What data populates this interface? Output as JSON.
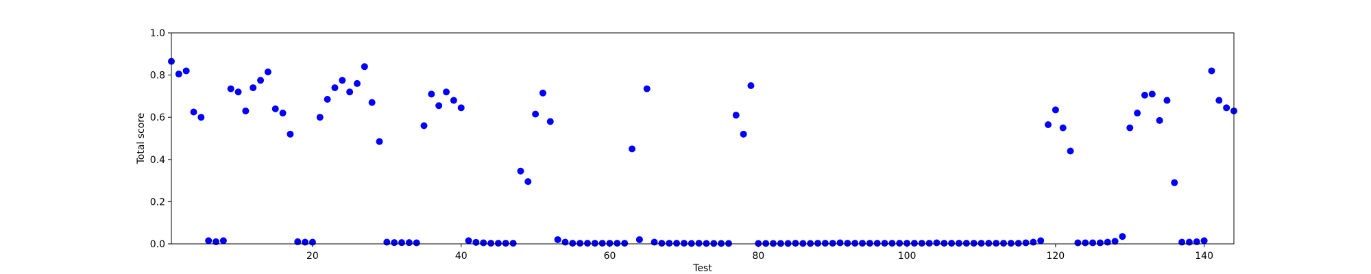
{
  "chart_data": {
    "type": "scatter",
    "title": "",
    "xlabel": "Test",
    "ylabel": "Total score",
    "xlim": [
      1,
      144
    ],
    "ylim": [
      0.0,
      1.0
    ],
    "x_ticks": [
      20,
      40,
      60,
      80,
      100,
      120,
      140
    ],
    "x_tick_labels": [
      "20",
      "40",
      "60",
      "80",
      "100",
      "120",
      "140"
    ],
    "y_ticks": [
      0.0,
      0.2,
      0.4,
      0.6,
      0.8,
      1.0
    ],
    "y_tick_labels": [
      "0.0",
      "0.2",
      "0.4",
      "0.6",
      "0.8",
      "1.0"
    ],
    "grid": false,
    "marker_color": "#0000ff",
    "series": [
      {
        "x": [
          1,
          2,
          3,
          4,
          5,
          6,
          7,
          8,
          9,
          10,
          11,
          12,
          13,
          14,
          15,
          16,
          17,
          18,
          19,
          20,
          21,
          22,
          23,
          24,
          25,
          26,
          27,
          28,
          29,
          30,
          31,
          32,
          33,
          34,
          35,
          36,
          37,
          38,
          39,
          40,
          41,
          42,
          43,
          44,
          45,
          46,
          47,
          48,
          49,
          50,
          51,
          52,
          53,
          54,
          55,
          56,
          57,
          58,
          59,
          60,
          61,
          62,
          63,
          64,
          65,
          66,
          67,
          68,
          69,
          70,
          71,
          72,
          73,
          74,
          75,
          76,
          77,
          78,
          79,
          80,
          81,
          82,
          83,
          84,
          85,
          86,
          87,
          88,
          89,
          90,
          91,
          92,
          93,
          94,
          95,
          96,
          97,
          98,
          99,
          100,
          101,
          102,
          103,
          104,
          105,
          106,
          107,
          108,
          109,
          110,
          111,
          112,
          113,
          114,
          115,
          116,
          117,
          118,
          119,
          120,
          121,
          122,
          123,
          124,
          125,
          126,
          127,
          128,
          129,
          130,
          131,
          132,
          133,
          134,
          135,
          136,
          137,
          138,
          139,
          140,
          141,
          142,
          143,
          144
        ],
        "y": [
          0.865,
          0.805,
          0.82,
          0.625,
          0.6,
          0.015,
          0.01,
          0.015,
          0.735,
          0.72,
          0.63,
          0.74,
          0.775,
          0.815,
          0.64,
          0.62,
          0.52,
          0.01,
          0.008,
          0.008,
          0.6,
          0.685,
          0.74,
          0.775,
          0.72,
          0.76,
          0.84,
          0.67,
          0.485,
          0.008,
          0.006,
          0.006,
          0.006,
          0.005,
          0.56,
          0.71,
          0.655,
          0.72,
          0.68,
          0.645,
          0.015,
          0.007,
          0.005,
          0.003,
          0.003,
          0.003,
          0.003,
          0.345,
          0.295,
          0.615,
          0.715,
          0.58,
          0.02,
          0.008,
          0.003,
          0.003,
          0.003,
          0.003,
          0.003,
          0.003,
          0.003,
          0.003,
          0.45,
          0.02,
          0.735,
          0.008,
          0.003,
          0.003,
          0.003,
          0.003,
          0.002,
          0.003,
          0.002,
          0.002,
          0.002,
          0.002,
          0.61,
          0.52,
          0.75,
          0.002,
          0.002,
          0.002,
          0.002,
          0.002,
          0.003,
          0.002,
          0.002,
          0.003,
          0.003,
          0.003,
          0.005,
          0.003,
          0.003,
          0.003,
          0.003,
          0.003,
          0.003,
          0.003,
          0.003,
          0.003,
          0.003,
          0.003,
          0.003,
          0.005,
          0.003,
          0.003,
          0.003,
          0.003,
          0.003,
          0.003,
          0.003,
          0.003,
          0.003,
          0.003,
          0.003,
          0.005,
          0.008,
          0.015,
          0.565,
          0.635,
          0.55,
          0.44,
          0.005,
          0.005,
          0.005,
          0.005,
          0.008,
          0.012,
          0.035,
          0.55,
          0.62,
          0.705,
          0.71,
          0.585,
          0.68,
          0.29,
          0.008,
          0.008,
          0.01,
          0.015,
          0.82,
          0.68,
          0.645,
          0.63
        ]
      }
    ]
  }
}
